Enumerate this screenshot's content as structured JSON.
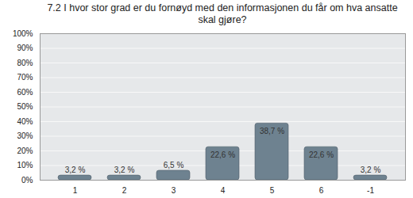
{
  "chart_data": {
    "type": "bar",
    "title": "7.2 I hvor stor grad er du fornøyd med den informasjonen du får om hva ansatte skal gjøre?",
    "categories": [
      "1",
      "2",
      "3",
      "4",
      "5",
      "6",
      "-1"
    ],
    "values": [
      3.2,
      3.2,
      6.5,
      22.6,
      38.7,
      22.6,
      3.2
    ],
    "value_labels": [
      "3,2 %",
      "3,2 %",
      "6,5 %",
      "22,6 %",
      "38,7 %",
      "22,6 %",
      "3,2 %"
    ],
    "data_labels": true,
    "color": "#6e8290",
    "ylim": [
      0,
      100
    ],
    "yticks": [
      {
        "value": 0,
        "label": "0%"
      },
      {
        "value": 10,
        "label": "10%"
      },
      {
        "value": 20,
        "label": "20%"
      },
      {
        "value": 30,
        "label": "30%"
      },
      {
        "value": 40,
        "label": "40%"
      },
      {
        "value": 50,
        "label": "50%"
      },
      {
        "value": 60,
        "label": "60%"
      },
      {
        "value": 70,
        "label": "70%"
      },
      {
        "value": 80,
        "label": "80%"
      },
      {
        "value": 90,
        "label": "90%"
      },
      {
        "value": 100,
        "label": "100%"
      }
    ],
    "grid": true
  }
}
